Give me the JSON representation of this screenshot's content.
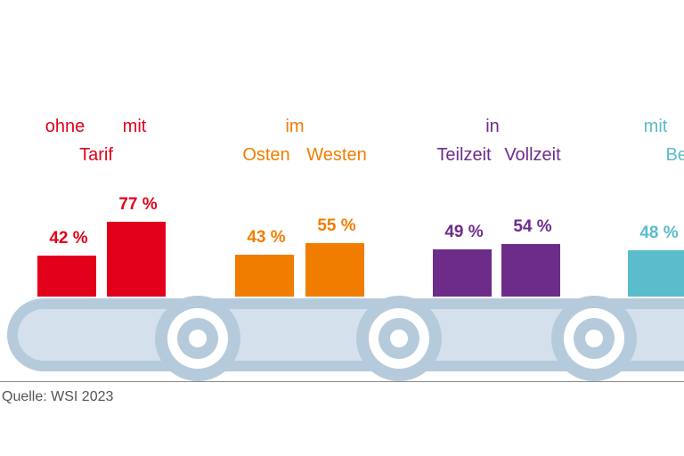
{
  "colors": {
    "red": "#e2001a",
    "orange": "#f07d00",
    "purple": "#6e2c8a",
    "teal": "#5bbccc",
    "belt": "#d4e1ec",
    "belt_outline": "#b5cbdc",
    "roller": "#b5cbdc"
  },
  "source": "Quelle: WSI 2023",
  "chart_data": {
    "type": "bar",
    "ylim": [
      0,
      100
    ],
    "groups": [
      {
        "header": "",
        "color": "red",
        "bars": [
          {
            "label": "ohne",
            "value": 42,
            "value_label": "42 %"
          },
          {
            "label": "mit",
            "value": 77,
            "value_label": "77 %"
          }
        ],
        "line1": [
          "ohne",
          "mit"
        ],
        "line2": "Tarif"
      },
      {
        "header": "im",
        "color": "orange",
        "bars": [
          {
            "label": "Osten",
            "value": 43,
            "value_label": "43 %"
          },
          {
            "label": "Westen",
            "value": 55,
            "value_label": "55 %"
          }
        ],
        "line1": [],
        "line2": ""
      },
      {
        "header": "in",
        "color": "purple",
        "bars": [
          {
            "label": "Teilzeit",
            "value": 49,
            "value_label": "49 %"
          },
          {
            "label": "Vollzeit",
            "value": 54,
            "value_label": "54 %"
          }
        ],
        "line1": [],
        "line2": ""
      },
      {
        "header": "mit",
        "color": "teal",
        "bars": [
          {
            "label": "Befri",
            "value": 48,
            "value_label": "48 %"
          }
        ],
        "line1": [],
        "line2": ""
      }
    ]
  }
}
